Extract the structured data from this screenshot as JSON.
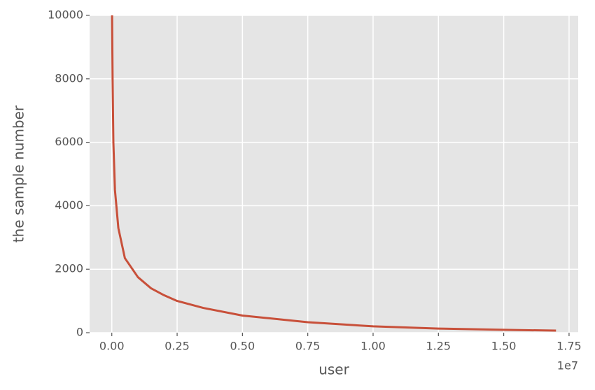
{
  "chart_data": {
    "type": "line",
    "x_label": "user",
    "y_label": "the sample number",
    "x_offset_label": "1e7",
    "x": [
      10000,
      30000,
      60000,
      120000,
      250000,
      500000,
      1000000,
      1500000,
      2000000,
      2500000,
      3500000,
      5000000,
      7500000,
      10000000,
      12500000,
      15000000,
      17000000
    ],
    "series": [
      {
        "name": "sample number",
        "color": "#c8503a",
        "values": [
          10000,
          8000,
          6000,
          4500,
          3300,
          2350,
          1750,
          1400,
          1180,
          1000,
          780,
          540,
          330,
          200,
          130,
          90,
          65
        ]
      }
    ],
    "xlim": [
      -850000,
      17850000
    ],
    "xticks": [
      {
        "value": 0,
        "label": "0.00"
      },
      {
        "value": 2500000,
        "label": "0.25"
      },
      {
        "value": 5000000,
        "label": "0.50"
      },
      {
        "value": 7500000,
        "label": "0.75"
      },
      {
        "value": 10000000,
        "label": "1.00"
      },
      {
        "value": 12500000,
        "label": "1.25"
      },
      {
        "value": 15000000,
        "label": "1.50"
      },
      {
        "value": 17500000,
        "label": "1.75"
      }
    ],
    "ylim": [
      0,
      10000
    ],
    "yticks": [
      0,
      2000,
      4000,
      6000,
      8000,
      10000
    ],
    "grid": true
  }
}
